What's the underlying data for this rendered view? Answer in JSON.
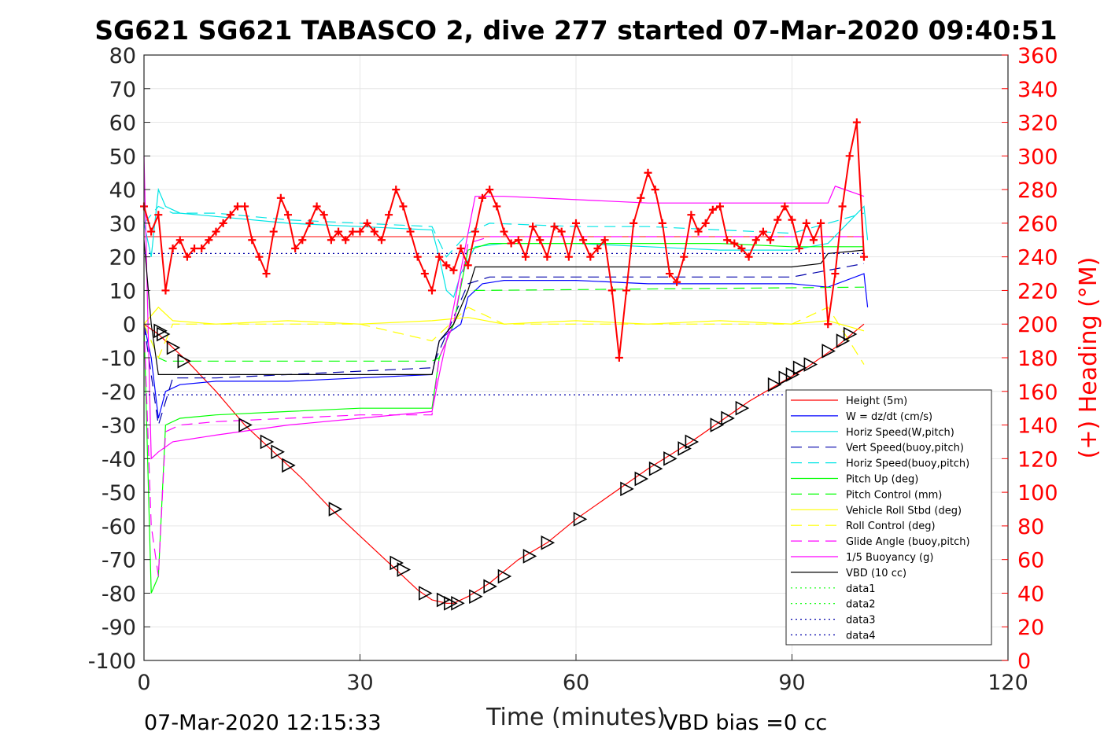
{
  "chart_data": {
    "type": "line",
    "title": "SG621 SG621 TABASCO 2, dive 277 started 07-Mar-2020 09:40:51",
    "xlabel": "Time (minutes)",
    "ylabel": "",
    "y2label": "(+) Heading (°M)",
    "xlim": [
      0,
      120
    ],
    "ylim": [
      -100,
      80
    ],
    "y2lim": [
      0,
      360
    ],
    "xticks": [
      "0",
      "30",
      "60",
      "90",
      "120"
    ],
    "yticks": [
      "80",
      "70",
      "60",
      "50",
      "40",
      "30",
      "20",
      "10",
      "0",
      "-10",
      "-20",
      "-30",
      "-40",
      "-50",
      "-60",
      "-70",
      "-80",
      "-90",
      "-100"
    ],
    "y2ticks": [
      "360",
      "340",
      "320",
      "300",
      "280",
      "260",
      "240",
      "220",
      "200",
      "180",
      "160",
      "140",
      "120",
      "100",
      "80",
      "60",
      "40",
      "20",
      "0"
    ],
    "grid": true,
    "legend_position": "bottom-right",
    "footer_left": "07-Mar-2020 12:15:33",
    "footer_right": "VBD bias =0 cc",
    "colors": {
      "red": "#ff0000",
      "blue": "#0000ff",
      "navy": "#0000aa",
      "cyan": "#00ffff",
      "green": "#00ff00",
      "yellow": "#ffff00",
      "magenta": "#ff00ff",
      "black": "#000000"
    },
    "series": [
      {
        "name": "Height (5m)",
        "color": "#ff0000",
        "style": "solid",
        "x": [
          0,
          2,
          4,
          6,
          10,
          14,
          18,
          22,
          26,
          30,
          34,
          38,
          40,
          42,
          43,
          45,
          48,
          52,
          56,
          60,
          66,
          70,
          76,
          80,
          84,
          88,
          92,
          96,
          100
        ],
        "y": [
          0,
          -3,
          -7,
          -11,
          -20,
          -30,
          -38,
          -46,
          -55,
          -63,
          -71,
          -79,
          -82,
          -83,
          -83,
          -81,
          -77,
          -70,
          -65,
          -58,
          -49,
          -43,
          -35,
          -29,
          -23,
          -18,
          -13,
          -7,
          0
        ]
      },
      {
        "name": "W = dz/dt (cm/s)",
        "color": "#0000ff",
        "style": "solid",
        "x": [
          0,
          1,
          2,
          3,
          5,
          10,
          20,
          30,
          40,
          41,
          42,
          44,
          45,
          47,
          50,
          60,
          70,
          80,
          90,
          95,
          100,
          100.5
        ],
        "y": [
          0,
          -10,
          -28,
          -20,
          -18,
          -17,
          -17,
          -16,
          -15,
          -5,
          -3,
          0,
          8,
          12,
          13,
          13,
          12,
          12,
          12,
          11,
          15,
          5
        ]
      },
      {
        "name": "Horiz Speed(W,pitch)",
        "color": "#00e5e5",
        "style": "solid",
        "x": [
          0,
          1,
          2,
          3,
          5,
          10,
          20,
          30,
          40,
          41,
          42,
          43,
          44,
          46,
          50,
          60,
          70,
          80,
          90,
          95,
          100,
          100.5
        ],
        "y": [
          30,
          20,
          40,
          35,
          33,
          32,
          30,
          29,
          28,
          20,
          10,
          8,
          15,
          23,
          24,
          24,
          23,
          22,
          22,
          24,
          35,
          25
        ]
      },
      {
        "name": "Vert Speed(buoy,pitch)",
        "color": "#0000aa",
        "style": "dashed",
        "x": [
          0,
          2,
          4,
          10,
          20,
          30,
          40,
          42,
          45,
          48,
          60,
          70,
          80,
          90,
          100
        ],
        "y": [
          0,
          -30,
          -16,
          -16,
          -15,
          -14,
          -13,
          -3,
          12,
          14,
          14,
          14,
          14,
          14,
          18
        ]
      },
      {
        "name": "Horiz Speed(buoy,pitch)",
        "color": "#00e5e5",
        "style": "dashed",
        "x": [
          0,
          2,
          4,
          10,
          20,
          30,
          40,
          42,
          45,
          48,
          60,
          70,
          80,
          90,
          95,
          100
        ],
        "y": [
          30,
          35,
          33,
          33,
          31,
          30,
          29,
          20,
          27,
          30,
          29,
          29,
          28,
          27,
          30,
          33
        ]
      },
      {
        "name": "Pitch Up (deg)",
        "color": "#00ff00",
        "style": "solid",
        "x": [
          0,
          1,
          2,
          3,
          5,
          10,
          20,
          30,
          40,
          41,
          43,
          45,
          48,
          60,
          70,
          80,
          90,
          100
        ],
        "y": [
          0,
          -80,
          -75,
          -30,
          -28,
          -27,
          -26,
          -25,
          -25,
          -10,
          0,
          22,
          24,
          24,
          24,
          24,
          23,
          23
        ]
      },
      {
        "name": "Pitch Control (mm)",
        "color": "#00ff00",
        "style": "dashed",
        "x": [
          0,
          2,
          3,
          40,
          41,
          45,
          46,
          100
        ],
        "y": [
          0,
          -10,
          -11,
          -11,
          -10,
          10,
          10,
          11
        ]
      },
      {
        "name": "Vehicle Roll Stbd (deg)",
        "color": "#ffff00",
        "style": "solid",
        "x": [
          0,
          2,
          4,
          10,
          20,
          30,
          40,
          45,
          50,
          60,
          70,
          80,
          90,
          95,
          100
        ],
        "y": [
          0,
          5,
          1,
          0,
          1,
          0,
          1,
          2,
          0,
          1,
          0,
          1,
          0,
          1,
          -2
        ]
      },
      {
        "name": "Roll Control (deg)",
        "color": "#ffff00",
        "style": "dashed",
        "x": [
          0,
          2,
          4,
          10,
          20,
          30,
          40,
          45,
          50,
          60,
          70,
          80,
          90,
          95,
          100
        ],
        "y": [
          0,
          -10,
          0,
          0,
          0,
          0,
          -5,
          5,
          0,
          0,
          0,
          0,
          0,
          5,
          -12
        ]
      },
      {
        "name": "Glide Angle (buoy,pitch)",
        "color": "#ff00ff",
        "style": "dashed",
        "x": [
          0,
          1,
          2,
          3,
          5,
          10,
          20,
          30,
          40,
          41,
          43,
          45,
          48,
          60,
          70,
          80,
          90,
          100
        ],
        "y": [
          0,
          -60,
          -75,
          -32,
          -30,
          -29,
          -28,
          -27,
          -27,
          -10,
          0,
          24,
          26,
          26,
          26,
          26,
          26,
          26
        ]
      },
      {
        "name": "1/5 Buoyancy (g)",
        "color": "#ff00ff",
        "style": "solid",
        "x": [
          0,
          1,
          2,
          4,
          10,
          20,
          30,
          40,
          41,
          43,
          46,
          50,
          60,
          70,
          80,
          90,
          95,
          96,
          100
        ],
        "y": [
          50,
          -40,
          -38,
          -35,
          -33,
          -30,
          -28,
          -26,
          -15,
          5,
          38,
          38,
          37,
          36,
          36,
          36,
          36,
          41,
          38
        ]
      },
      {
        "name": "VBD (10 cc)",
        "color": "#000000",
        "style": "solid",
        "x": [
          0,
          1,
          2,
          3,
          40,
          41,
          43,
          45,
          46,
          60,
          90,
          94,
          95,
          100
        ],
        "y": [
          25,
          0,
          -15,
          -15,
          -15,
          -5,
          0,
          10,
          17,
          17,
          17,
          18,
          21,
          22
        ]
      },
      {
        "name": "data1",
        "color": "#00ff00",
        "style": "dotted",
        "x": [],
        "y": []
      },
      {
        "name": "data2",
        "color": "#00ff00",
        "style": "dotted",
        "x": [],
        "y": []
      },
      {
        "name": "data3",
        "color": "#0000aa",
        "style": "dotted",
        "x": [
          0,
          100
        ],
        "y": [
          -21,
          -21
        ]
      },
      {
        "name": "data4",
        "color": "#0000aa",
        "style": "dotted",
        "x": [
          0,
          100
        ],
        "y": [
          21,
          21
        ]
      }
    ],
    "height_line_ref": {
      "x": [
        0,
        100
      ],
      "y": [
        26,
        26
      ],
      "color": "#ff0000"
    },
    "heading": {
      "color": "#ff0000",
      "marker": "+",
      "axis": "right",
      "x": [
        0,
        1,
        2,
        3,
        4,
        5,
        6,
        7,
        8,
        9,
        10,
        11,
        12,
        13,
        14,
        15,
        16,
        17,
        18,
        19,
        20,
        21,
        22,
        23,
        24,
        25,
        26,
        27,
        28,
        29,
        30,
        31,
        32,
        33,
        34,
        35,
        36,
        37,
        38,
        39,
        40,
        41,
        42,
        43,
        44,
        45,
        46,
        47,
        48,
        49,
        50,
        51,
        52,
        53,
        54,
        55,
        56,
        57,
        58,
        59,
        60,
        61,
        62,
        63,
        64,
        65,
        66,
        67,
        68,
        69,
        70,
        71,
        72,
        73,
        74,
        75,
        76,
        77,
        78,
        79,
        80,
        81,
        82,
        83,
        84,
        85,
        86,
        87,
        88,
        89,
        90,
        91,
        92,
        93,
        94,
        95,
        96,
        97,
        98,
        99,
        100
      ],
      "y": [
        270,
        255,
        265,
        220,
        245,
        250,
        240,
        245,
        245,
        250,
        255,
        260,
        265,
        270,
        270,
        250,
        240,
        230,
        255,
        275,
        265,
        245,
        250,
        260,
        270,
        265,
        250,
        255,
        250,
        255,
        255,
        260,
        255,
        250,
        265,
        280,
        270,
        255,
        240,
        230,
        220,
        240,
        235,
        232,
        245,
        235,
        255,
        275,
        280,
        270,
        255,
        248,
        250,
        240,
        258,
        250,
        240,
        258,
        255,
        240,
        260,
        250,
        240,
        245,
        250,
        220,
        180,
        220,
        260,
        275,
        290,
        280,
        260,
        230,
        225,
        240,
        265,
        255,
        260,
        268,
        270,
        250,
        248,
        245,
        240,
        250,
        255,
        250,
        262,
        270,
        262,
        245,
        260,
        250,
        260,
        200,
        230,
        270,
        300,
        320,
        240
      ]
    },
    "triangle_markers": {
      "color": "#000000",
      "marker": "triangle",
      "x": [
        2.2,
        2.6,
        4,
        5.5,
        14,
        17,
        18.5,
        20,
        26.5,
        35,
        36,
        39,
        41.5,
        42.5,
        43.5,
        46,
        48,
        50,
        53.5,
        56,
        60.5,
        67,
        69,
        71,
        73,
        75,
        76,
        79.5,
        81,
        83,
        87.5,
        89,
        90,
        91,
        92.5,
        95,
        97,
        98
      ],
      "y": [
        -2,
        -3,
        -7,
        -11,
        -30,
        -35,
        -38,
        -42,
        -55,
        -71,
        -73,
        -80,
        -82,
        -83,
        -83,
        -81,
        -78,
        -75,
        -69,
        -65,
        -58,
        -49,
        -46,
        -43,
        -40,
        -37,
        -35,
        -30,
        -28,
        -25,
        -18,
        -16,
        -15,
        -13,
        -12,
        -8,
        -5,
        -3
      ]
    }
  }
}
